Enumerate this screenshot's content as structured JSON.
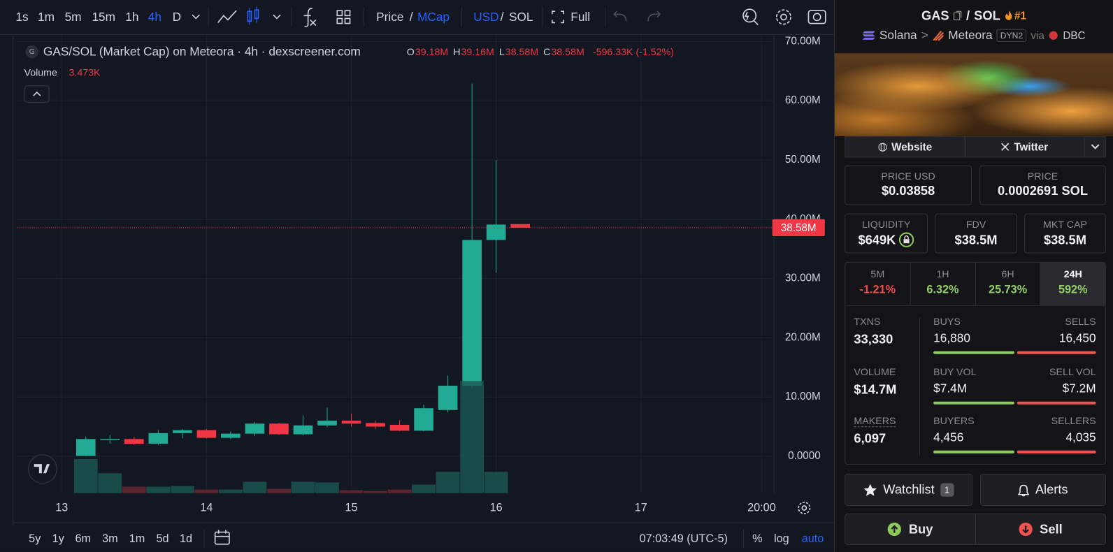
{
  "toolbar": {
    "intervals": [
      "1s",
      "1m",
      "5m",
      "15m",
      "1h",
      "4h",
      "D"
    ],
    "price": "Price",
    "sep": "/",
    "mcap": "MCap",
    "usd": "USD",
    "sol": "SOL",
    "full": "Full"
  },
  "chart": {
    "type": "candlestick",
    "title": "GAS/SOL (Market Cap) on Meteora · 4h · dexscreener.com",
    "symbol_icon": "G",
    "ohlc_keys": [
      "O",
      "H",
      "L",
      "C"
    ],
    "ohlc_labels": [
      "39.18M",
      "39.16M",
      "38.58M",
      "38.58M"
    ],
    "change_label": "-596.33K (-1.52%)",
    "volume_name": "Volume",
    "volume_label": "3.473K",
    "last_price_label": "38.58M",
    "x": [
      4,
      8,
      12,
      16,
      20,
      24,
      28,
      32,
      36,
      40,
      44,
      48,
      52,
      56,
      60,
      64,
      68,
      72,
      76
    ],
    "open": [
      50000,
      2800000,
      2900000,
      2100000,
      3900000,
      4400000,
      3100000,
      3800000,
      5500000,
      3700000,
      5200000,
      6000000,
      5600000,
      5300000,
      4300000,
      7800000,
      11900000,
      36500000,
      39180000
    ],
    "high": [
      3300000,
      3600000,
      3300000,
      4400000,
      4600000,
      4600000,
      4200000,
      5800000,
      5600000,
      6900000,
      8200000,
      7200000,
      6000000,
      6100000,
      8700000,
      13600000,
      62900000,
      50000000,
      39160000
    ],
    "low": [
      0,
      2100000,
      1900000,
      1900000,
      3000000,
      3000000,
      2900000,
      3400000,
      3600000,
      3500000,
      4900000,
      5000000,
      4600000,
      4200000,
      4200000,
      7400000,
      11600000,
      31000000,
      38580000
    ],
    "close": [
      2900000,
      2900000,
      2100000,
      3900000,
      4400000,
      3100000,
      3800000,
      5500000,
      3700000,
      5200000,
      6000000,
      5500000,
      5000000,
      4300000,
      8100000,
      11900000,
      36500000,
      39100000,
      38580000
    ],
    "volume": [
      1440000,
      840000,
      270000,
      270000,
      300000,
      150000,
      150000,
      480000,
      180000,
      480000,
      450000,
      120000,
      90000,
      150000,
      360000,
      900000,
      4740000,
      900000,
      3473
    ],
    "colors": {
      "up": "#22ab94",
      "down": "#f23645"
    },
    "xlim": [
      -7.4,
      118
    ],
    "xticks": [
      {
        "value": 0,
        "label": "13"
      },
      {
        "value": 24,
        "label": "14"
      },
      {
        "value": 48,
        "label": "15"
      },
      {
        "value": 72,
        "label": "16"
      },
      {
        "value": 96,
        "label": "17"
      },
      {
        "value": 116,
        "label": "20:00"
      }
    ],
    "ylim": [
      -6230000,
      71020000
    ],
    "yticks": [
      {
        "value": 0,
        "label": "0.0000"
      },
      {
        "value": 10000000,
        "label": "10.00M"
      },
      {
        "value": 20000000,
        "label": "20.00M"
      },
      {
        "value": 30000000,
        "label": "30.00M"
      },
      {
        "value": 40000000,
        "label": "40.00M"
      },
      {
        "value": 50000000,
        "label": "50.00M"
      },
      {
        "value": 60000000,
        "label": "60.00M"
      },
      {
        "value": 70000000,
        "label": "70.00M"
      }
    ],
    "grid": true
  },
  "bottom_bar": {
    "ranges": [
      "5y",
      "1y",
      "6m",
      "3m",
      "1m",
      "5d",
      "1d"
    ],
    "time": "07:03:49 (UTC-5)",
    "percent": "%",
    "log": "log",
    "auto": "auto"
  },
  "pair": {
    "base": "GAS",
    "sep": "/",
    "quote": "SOL",
    "rank": "#1",
    "chain": "Solana",
    "arrow": ">",
    "dex": "Meteora",
    "pool_tag": "DYN2",
    "via": "via",
    "launchpad": "DBC"
  },
  "links": [
    "Website",
    "Twitter"
  ],
  "prices": [
    {
      "label": "PRICE USD",
      "value": "$0.03858"
    },
    {
      "label": "PRICE",
      "value": "0.0002691 SOL"
    }
  ],
  "metrics": [
    {
      "label": "LIQUIDITY",
      "value": "$649K"
    },
    {
      "label": "FDV",
      "value": "$38.5M"
    },
    {
      "label": "MKT CAP",
      "value": "$38.5M"
    }
  ],
  "changes": [
    {
      "label": "5M",
      "value": "-1.21%"
    },
    {
      "label": "1H",
      "value": "6.32%"
    },
    {
      "label": "6H",
      "value": "25.73%"
    },
    {
      "label": "24H",
      "value": "592%"
    }
  ],
  "stats": [
    {
      "label": "TXNS",
      "value": "33,330",
      "left_label": "BUYS",
      "left_value": "16,880",
      "right_label": "SELLS",
      "right_value": "16,450"
    },
    {
      "label": "VOLUME",
      "value": "$14.7M",
      "left_label": "BUY VOL",
      "left_value": "$7.4M",
      "right_label": "SELL VOL",
      "right_value": "$7.2M"
    },
    {
      "label": "MAKERS",
      "value": "6,097",
      "left_label": "BUYERS",
      "left_value": "4,456",
      "right_label": "SELLERS",
      "right_value": "4,035"
    }
  ],
  "actions": {
    "watchlist": "Watchlist",
    "watch_count": "1",
    "alerts": "Alerts",
    "buy": "Buy",
    "sell": "Sell"
  }
}
